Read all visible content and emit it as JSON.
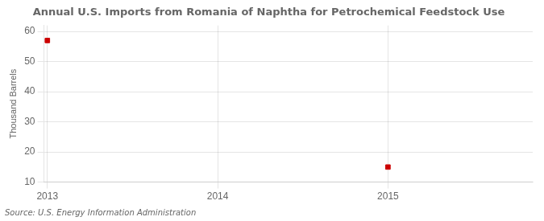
{
  "chart_data": {
    "type": "scatter",
    "title": "Annual U.S. Imports from Romania of Naphtha for Petrochemical Feedstock Use",
    "ylabel": "Thousand Barrels",
    "annotation": "Source: U.S. Energy Information Administration",
    "x": [
      2013,
      2015
    ],
    "values": [
      57,
      15
    ],
    "color": "#cc0000",
    "marker": "square",
    "xlim": [
      2012.98,
      2015.85
    ],
    "xticks": [
      2013,
      2014,
      2015
    ],
    "ylim": [
      10,
      62
    ],
    "yticks": [
      10,
      20,
      30,
      40,
      50,
      60
    ],
    "grid": true
  }
}
